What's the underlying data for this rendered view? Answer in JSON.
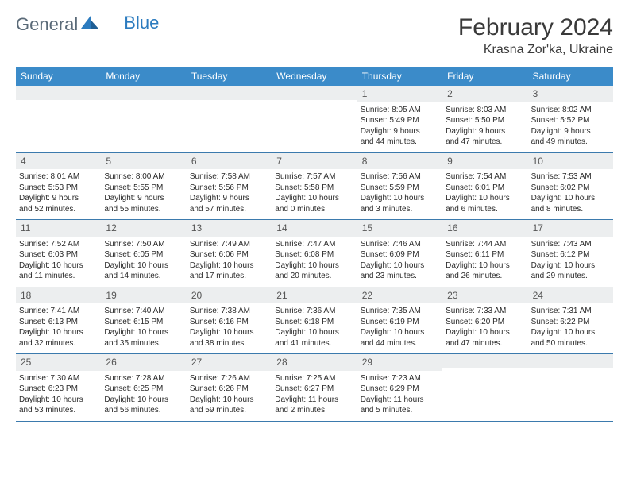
{
  "logo": {
    "text1": "General",
    "text2": "Blue"
  },
  "title": {
    "month": "February 2024",
    "location": "Krasna Zor'ka, Ukraine"
  },
  "weekdays": [
    "Sunday",
    "Monday",
    "Tuesday",
    "Wednesday",
    "Thursday",
    "Friday",
    "Saturday"
  ],
  "colors": {
    "header_bg": "#3b8bc9",
    "day_num_bg": "#eceeef",
    "row_border": "#3b7aad",
    "logo_gray": "#5a6a78",
    "logo_blue": "#2b7bbf"
  },
  "weeks": [
    [
      null,
      null,
      null,
      null,
      {
        "n": "1",
        "sr": "Sunrise: 8:05 AM",
        "ss": "Sunset: 5:49 PM",
        "d1": "Daylight: 9 hours",
        "d2": "and 44 minutes."
      },
      {
        "n": "2",
        "sr": "Sunrise: 8:03 AM",
        "ss": "Sunset: 5:50 PM",
        "d1": "Daylight: 9 hours",
        "d2": "and 47 minutes."
      },
      {
        "n": "3",
        "sr": "Sunrise: 8:02 AM",
        "ss": "Sunset: 5:52 PM",
        "d1": "Daylight: 9 hours",
        "d2": "and 49 minutes."
      }
    ],
    [
      {
        "n": "4",
        "sr": "Sunrise: 8:01 AM",
        "ss": "Sunset: 5:53 PM",
        "d1": "Daylight: 9 hours",
        "d2": "and 52 minutes."
      },
      {
        "n": "5",
        "sr": "Sunrise: 8:00 AM",
        "ss": "Sunset: 5:55 PM",
        "d1": "Daylight: 9 hours",
        "d2": "and 55 minutes."
      },
      {
        "n": "6",
        "sr": "Sunrise: 7:58 AM",
        "ss": "Sunset: 5:56 PM",
        "d1": "Daylight: 9 hours",
        "d2": "and 57 minutes."
      },
      {
        "n": "7",
        "sr": "Sunrise: 7:57 AM",
        "ss": "Sunset: 5:58 PM",
        "d1": "Daylight: 10 hours",
        "d2": "and 0 minutes."
      },
      {
        "n": "8",
        "sr": "Sunrise: 7:56 AM",
        "ss": "Sunset: 5:59 PM",
        "d1": "Daylight: 10 hours",
        "d2": "and 3 minutes."
      },
      {
        "n": "9",
        "sr": "Sunrise: 7:54 AM",
        "ss": "Sunset: 6:01 PM",
        "d1": "Daylight: 10 hours",
        "d2": "and 6 minutes."
      },
      {
        "n": "10",
        "sr": "Sunrise: 7:53 AM",
        "ss": "Sunset: 6:02 PM",
        "d1": "Daylight: 10 hours",
        "d2": "and 8 minutes."
      }
    ],
    [
      {
        "n": "11",
        "sr": "Sunrise: 7:52 AM",
        "ss": "Sunset: 6:03 PM",
        "d1": "Daylight: 10 hours",
        "d2": "and 11 minutes."
      },
      {
        "n": "12",
        "sr": "Sunrise: 7:50 AM",
        "ss": "Sunset: 6:05 PM",
        "d1": "Daylight: 10 hours",
        "d2": "and 14 minutes."
      },
      {
        "n": "13",
        "sr": "Sunrise: 7:49 AM",
        "ss": "Sunset: 6:06 PM",
        "d1": "Daylight: 10 hours",
        "d2": "and 17 minutes."
      },
      {
        "n": "14",
        "sr": "Sunrise: 7:47 AM",
        "ss": "Sunset: 6:08 PM",
        "d1": "Daylight: 10 hours",
        "d2": "and 20 minutes."
      },
      {
        "n": "15",
        "sr": "Sunrise: 7:46 AM",
        "ss": "Sunset: 6:09 PM",
        "d1": "Daylight: 10 hours",
        "d2": "and 23 minutes."
      },
      {
        "n": "16",
        "sr": "Sunrise: 7:44 AM",
        "ss": "Sunset: 6:11 PM",
        "d1": "Daylight: 10 hours",
        "d2": "and 26 minutes."
      },
      {
        "n": "17",
        "sr": "Sunrise: 7:43 AM",
        "ss": "Sunset: 6:12 PM",
        "d1": "Daylight: 10 hours",
        "d2": "and 29 minutes."
      }
    ],
    [
      {
        "n": "18",
        "sr": "Sunrise: 7:41 AM",
        "ss": "Sunset: 6:13 PM",
        "d1": "Daylight: 10 hours",
        "d2": "and 32 minutes."
      },
      {
        "n": "19",
        "sr": "Sunrise: 7:40 AM",
        "ss": "Sunset: 6:15 PM",
        "d1": "Daylight: 10 hours",
        "d2": "and 35 minutes."
      },
      {
        "n": "20",
        "sr": "Sunrise: 7:38 AM",
        "ss": "Sunset: 6:16 PM",
        "d1": "Daylight: 10 hours",
        "d2": "and 38 minutes."
      },
      {
        "n": "21",
        "sr": "Sunrise: 7:36 AM",
        "ss": "Sunset: 6:18 PM",
        "d1": "Daylight: 10 hours",
        "d2": "and 41 minutes."
      },
      {
        "n": "22",
        "sr": "Sunrise: 7:35 AM",
        "ss": "Sunset: 6:19 PM",
        "d1": "Daylight: 10 hours",
        "d2": "and 44 minutes."
      },
      {
        "n": "23",
        "sr": "Sunrise: 7:33 AM",
        "ss": "Sunset: 6:20 PM",
        "d1": "Daylight: 10 hours",
        "d2": "and 47 minutes."
      },
      {
        "n": "24",
        "sr": "Sunrise: 7:31 AM",
        "ss": "Sunset: 6:22 PM",
        "d1": "Daylight: 10 hours",
        "d2": "and 50 minutes."
      }
    ],
    [
      {
        "n": "25",
        "sr": "Sunrise: 7:30 AM",
        "ss": "Sunset: 6:23 PM",
        "d1": "Daylight: 10 hours",
        "d2": "and 53 minutes."
      },
      {
        "n": "26",
        "sr": "Sunrise: 7:28 AM",
        "ss": "Sunset: 6:25 PM",
        "d1": "Daylight: 10 hours",
        "d2": "and 56 minutes."
      },
      {
        "n": "27",
        "sr": "Sunrise: 7:26 AM",
        "ss": "Sunset: 6:26 PM",
        "d1": "Daylight: 10 hours",
        "d2": "and 59 minutes."
      },
      {
        "n": "28",
        "sr": "Sunrise: 7:25 AM",
        "ss": "Sunset: 6:27 PM",
        "d1": "Daylight: 11 hours",
        "d2": "and 2 minutes."
      },
      {
        "n": "29",
        "sr": "Sunrise: 7:23 AM",
        "ss": "Sunset: 6:29 PM",
        "d1": "Daylight: 11 hours",
        "d2": "and 5 minutes."
      },
      null,
      null
    ]
  ]
}
